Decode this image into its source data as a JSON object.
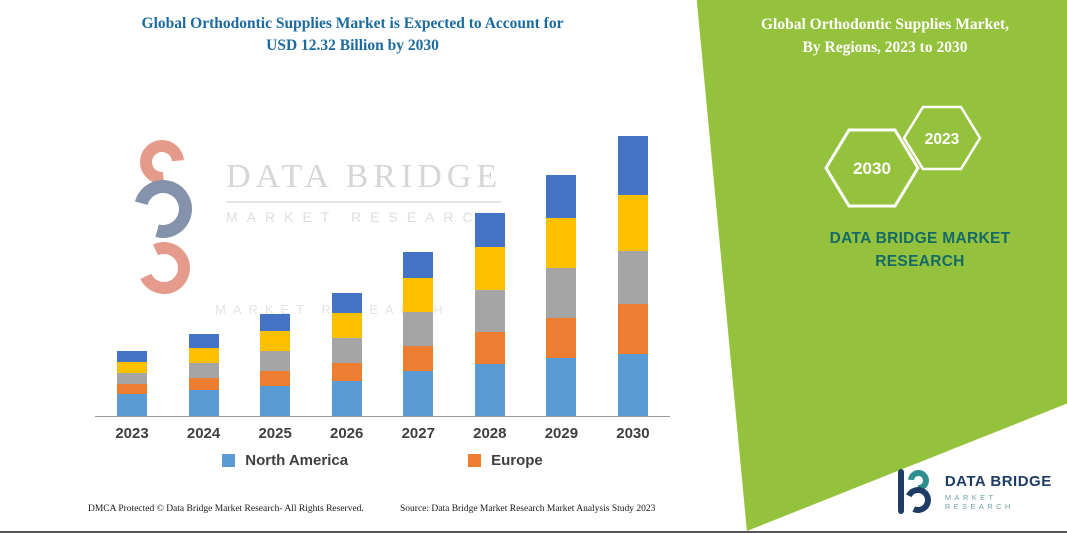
{
  "colors": {
    "green": "#95c23d",
    "title_blue": "#1c6ba0",
    "teal": "#156a67",
    "navy": "#1e3c64",
    "logo_teal": "#2f8f8f",
    "watermark_red": "#cf4a2e",
    "watermark_navy": "#203a68",
    "axis_text": "#3f3f3f"
  },
  "left": {
    "title_line1": "Global Orthodontic Supplies Market is Expected to Account for",
    "title_line2": "USD 12.32 Billion by 2030",
    "footer_dmca": "DMCA Protected © Data Bridge Market Research-  All Rights Reserved.",
    "footer_source": "Source: Data Bridge Market Research  Market Analysis Study 2023"
  },
  "right": {
    "title_line1": "Global Orthodontic Supplies Market,",
    "title_line2": "By Regions, 2023 to 2030",
    "hexagons": [
      {
        "year": "2030"
      },
      {
        "year": "2023"
      }
    ],
    "brand_heading_line1": "DATA BRIDGE MARKET",
    "brand_heading_line2": "RESEARCH"
  },
  "watermark": {
    "line1": "DATA BRIDGE",
    "line2": "MARKET  RESEARCH",
    "faint_line": "MARKET RESEARCH"
  },
  "brand_logo": {
    "name": "DATA BRIDGE",
    "subtitle": "MARKET RESEARCH"
  },
  "chart_data": {
    "type": "bar",
    "stacked": true,
    "title": "Global Orthodontic Supplies Market is Expected to Account for USD 12.32 Billion by 2030",
    "xlabel": "",
    "ylabel": "",
    "ylim": [
      0,
      13
    ],
    "grid": false,
    "y_axis_labels_visible": false,
    "legend_position": "bottom",
    "categories": [
      "2023",
      "2024",
      "2025",
      "2026",
      "2027",
      "2028",
      "2029",
      "2030"
    ],
    "series": [
      {
        "name": "North America",
        "color": "#5B9BD5",
        "values": [
          0.97,
          1.14,
          1.32,
          1.54,
          1.98,
          2.29,
          2.55,
          2.73
        ]
      },
      {
        "name": "Europe",
        "color": "#ED7D31",
        "values": [
          0.44,
          0.53,
          0.66,
          0.79,
          1.1,
          1.41,
          1.76,
          2.2
        ]
      },
      {
        "name": "",
        "color": "#A5A5A5",
        "values": [
          0.48,
          0.66,
          0.88,
          1.1,
          1.5,
          1.85,
          2.2,
          2.33
        ]
      },
      {
        "name": "",
        "color": "#FFC000",
        "values": [
          0.48,
          0.66,
          0.88,
          1.1,
          1.5,
          1.89,
          2.2,
          2.46
        ]
      },
      {
        "name": "",
        "color": "#4472C4",
        "values": [
          0.48,
          0.62,
          0.75,
          0.88,
          1.14,
          1.5,
          1.89,
          2.6
        ]
      }
    ],
    "totals": [
      2.85,
      3.61,
      4.49,
      5.41,
      7.22,
      8.94,
      10.6,
      12.32
    ],
    "legend": [
      {
        "label": "North America",
        "color": "#5B9BD5"
      },
      {
        "label": "Europe",
        "color": "#ED7D31"
      }
    ]
  }
}
